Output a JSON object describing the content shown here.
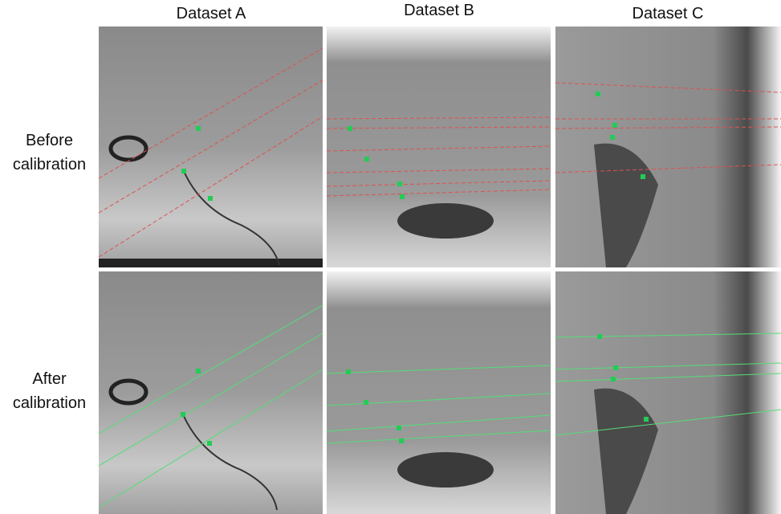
{
  "columns": [
    "Dataset A",
    "Dataset B",
    "Dataset C"
  ],
  "rows": [
    "Before calibration",
    "After calibration"
  ]
}
